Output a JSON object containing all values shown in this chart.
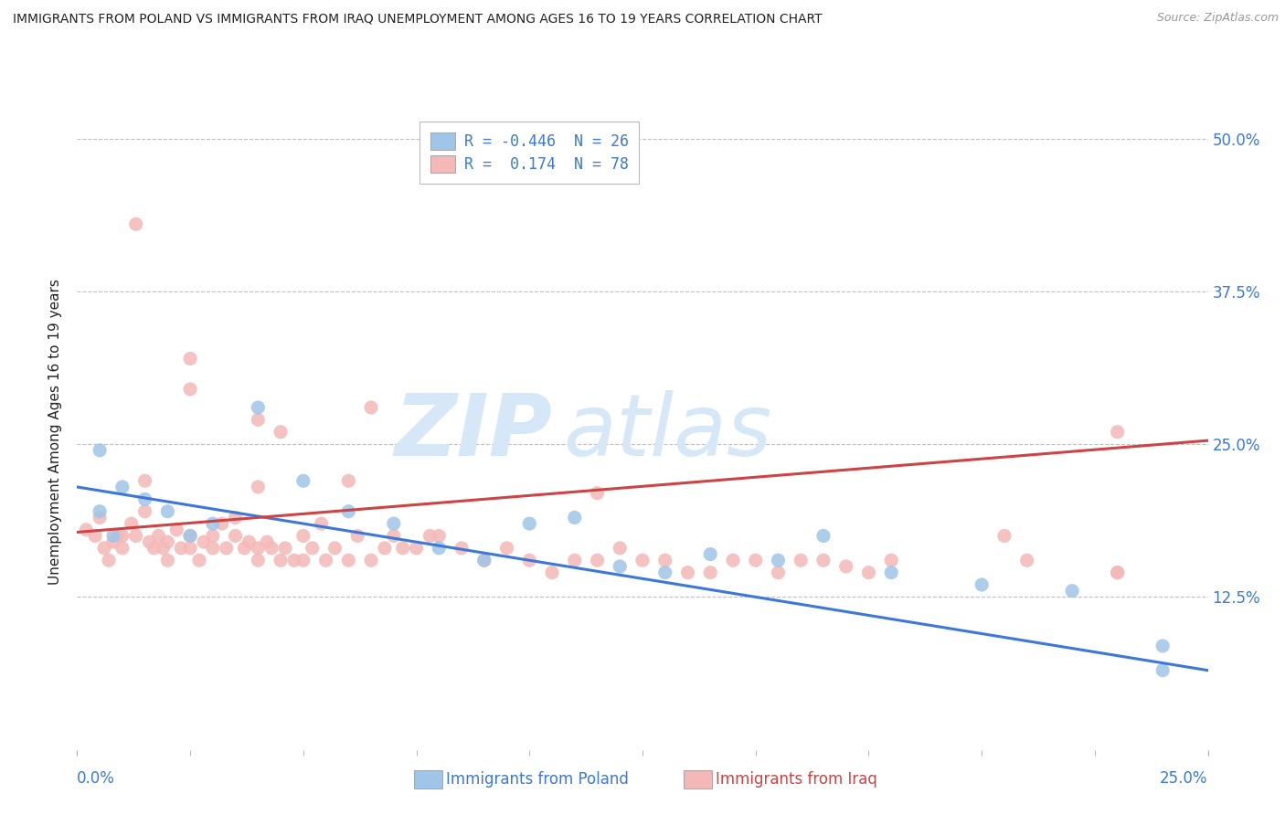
{
  "title": "IMMIGRANTS FROM POLAND VS IMMIGRANTS FROM IRAQ UNEMPLOYMENT AMONG AGES 16 TO 19 YEARS CORRELATION CHART",
  "source": "Source: ZipAtlas.com",
  "ylabel": "Unemployment Among Ages 16 to 19 years",
  "ytick_labels": [
    "",
    "12.5%",
    "25.0%",
    "37.5%",
    "50.0%"
  ],
  "ytick_values": [
    0.0,
    0.125,
    0.25,
    0.375,
    0.5
  ],
  "xlim": [
    0.0,
    0.25
  ],
  "ylim": [
    0.0,
    0.52
  ],
  "legend_blue_R": "R = -0.446",
  "legend_blue_N": "N = 26",
  "legend_pink_R": "R =  0.174",
  "legend_pink_N": "N = 78",
  "blue_color": "#9fc5e8",
  "pink_color": "#f4b8b8",
  "blue_line_color": "#3c78d8",
  "pink_line_color": "#cc4444",
  "background_color": "#ffffff",
  "grid_color": "#b0b0b0",
  "title_color": "#222222",
  "axis_label_color": "#3c78d8",
  "watermark_color": "#d6e8f7",
  "blue_line_start_y": 0.215,
  "blue_line_end_y": 0.065,
  "pink_line_start_y": 0.178,
  "pink_line_end_y": 0.253,
  "blue_scatter_x": [
    0.005,
    0.005,
    0.008,
    0.01,
    0.015,
    0.02,
    0.025,
    0.03,
    0.04,
    0.05,
    0.06,
    0.07,
    0.08,
    0.09,
    0.1,
    0.11,
    0.12,
    0.13,
    0.14,
    0.155,
    0.165,
    0.18,
    0.2,
    0.22,
    0.24,
    0.24
  ],
  "blue_scatter_y": [
    0.195,
    0.245,
    0.175,
    0.215,
    0.205,
    0.195,
    0.175,
    0.185,
    0.28,
    0.22,
    0.195,
    0.185,
    0.165,
    0.155,
    0.185,
    0.19,
    0.15,
    0.145,
    0.16,
    0.155,
    0.175,
    0.145,
    0.135,
    0.13,
    0.085,
    0.065
  ],
  "pink_scatter_x": [
    0.002,
    0.004,
    0.005,
    0.006,
    0.007,
    0.008,
    0.009,
    0.01,
    0.01,
    0.012,
    0.013,
    0.015,
    0.015,
    0.016,
    0.017,
    0.018,
    0.019,
    0.02,
    0.02,
    0.022,
    0.023,
    0.025,
    0.025,
    0.027,
    0.028,
    0.03,
    0.03,
    0.032,
    0.033,
    0.035,
    0.035,
    0.037,
    0.038,
    0.04,
    0.04,
    0.042,
    0.043,
    0.045,
    0.046,
    0.048,
    0.05,
    0.05,
    0.052,
    0.054,
    0.055,
    0.057,
    0.06,
    0.062,
    0.065,
    0.068,
    0.07,
    0.072,
    0.075,
    0.078,
    0.08,
    0.085,
    0.09,
    0.095,
    0.1,
    0.105,
    0.11,
    0.115,
    0.12,
    0.125,
    0.13,
    0.135,
    0.14,
    0.145,
    0.15,
    0.155,
    0.16,
    0.165,
    0.17,
    0.175,
    0.18,
    0.23,
    0.23,
    0.23
  ],
  "pink_scatter_y": [
    0.18,
    0.175,
    0.19,
    0.165,
    0.155,
    0.17,
    0.175,
    0.175,
    0.165,
    0.185,
    0.175,
    0.22,
    0.195,
    0.17,
    0.165,
    0.175,
    0.165,
    0.17,
    0.155,
    0.18,
    0.165,
    0.165,
    0.175,
    0.155,
    0.17,
    0.175,
    0.165,
    0.185,
    0.165,
    0.19,
    0.175,
    0.165,
    0.17,
    0.155,
    0.165,
    0.17,
    0.165,
    0.155,
    0.165,
    0.155,
    0.155,
    0.175,
    0.165,
    0.185,
    0.155,
    0.165,
    0.155,
    0.175,
    0.155,
    0.165,
    0.175,
    0.165,
    0.165,
    0.175,
    0.175,
    0.165,
    0.155,
    0.165,
    0.155,
    0.145,
    0.155,
    0.155,
    0.165,
    0.155,
    0.155,
    0.145,
    0.145,
    0.155,
    0.155,
    0.145,
    0.155,
    0.155,
    0.15,
    0.145,
    0.155,
    0.145,
    0.145,
    0.26
  ],
  "pink_outliers_x": [
    0.013,
    0.025,
    0.025,
    0.04,
    0.04,
    0.045,
    0.06,
    0.065,
    0.115,
    0.205,
    0.21
  ],
  "pink_outliers_y": [
    0.43,
    0.295,
    0.32,
    0.27,
    0.215,
    0.26,
    0.22,
    0.28,
    0.21,
    0.175,
    0.155
  ]
}
